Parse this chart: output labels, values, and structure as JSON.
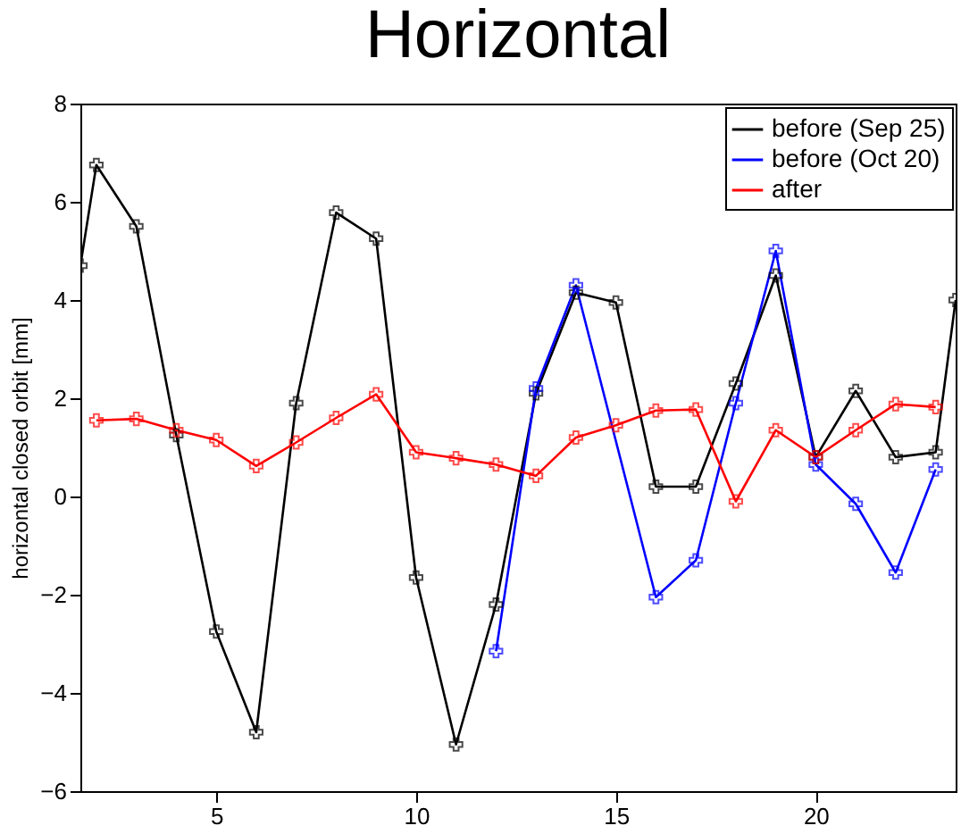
{
  "chart_data": {
    "type": "line",
    "title": "Horizontal",
    "ylabel": "horizontal closed orbit [mm]",
    "xlim": [
      1.6,
      23.5
    ],
    "ylim": [
      -6,
      8
    ],
    "xticks": [
      5,
      10,
      15,
      20
    ],
    "yticks": [
      -6,
      -4,
      -2,
      0,
      2,
      4,
      6,
      8
    ],
    "grid": false,
    "legend": "top right",
    "marker": "cross",
    "line_style": "solid",
    "series": [
      {
        "name": "before (Sep 25)",
        "color": "#000000",
        "x": [
          1.6,
          2,
          3,
          4,
          5,
          6,
          7,
          8,
          9,
          10,
          11,
          12,
          13,
          14,
          15,
          16,
          17,
          18,
          19,
          20,
          21,
          22,
          23,
          23.5
        ],
        "values": [
          4.7,
          6.75,
          5.5,
          1.25,
          -2.75,
          -4.8,
          1.9,
          5.78,
          5.25,
          -1.65,
          -5.05,
          -2.2,
          2.1,
          4.15,
          3.95,
          0.2,
          0.2,
          2.3,
          4.5,
          0.8,
          2.15,
          0.8,
          0.9,
          4.0
        ]
      },
      {
        "name": "before (Oct 20)",
        "color": "#0000ff",
        "x": [
          12,
          13,
          14,
          16,
          17,
          18,
          19,
          20,
          21,
          22,
          23
        ],
        "values": [
          -3.15,
          2.2,
          4.3,
          -2.05,
          -1.3,
          1.9,
          5.0,
          0.65,
          -0.15,
          -1.55,
          0.55
        ]
      },
      {
        "name": "after",
        "color": "#ff0000",
        "x": [
          2,
          3,
          4,
          5,
          6,
          7,
          8,
          9,
          10,
          11,
          12,
          13,
          14,
          15,
          16,
          17,
          18,
          19,
          20,
          21,
          22,
          23
        ],
        "values": [
          1.55,
          1.58,
          1.35,
          1.15,
          0.62,
          1.1,
          1.6,
          2.08,
          0.9,
          0.78,
          0.65,
          0.42,
          1.2,
          1.45,
          1.75,
          1.77,
          -0.1,
          1.35,
          0.8,
          1.35,
          1.88,
          1.82
        ]
      }
    ]
  }
}
